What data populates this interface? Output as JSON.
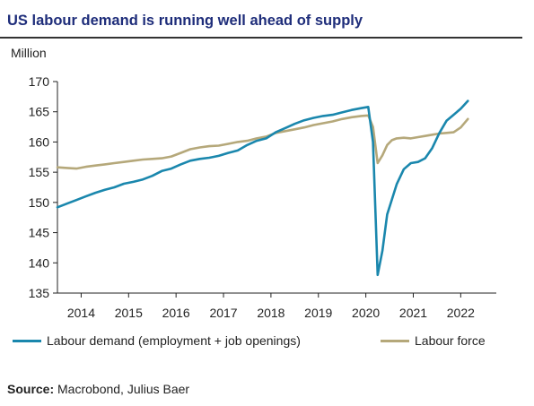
{
  "chart_data": {
    "type": "line",
    "title": "US labour demand is running well ahead of supply",
    "ylabel": "Million",
    "xlabel": "",
    "ylim": [
      135,
      170
    ],
    "yticks": [
      135,
      140,
      145,
      150,
      155,
      160,
      165,
      170
    ],
    "xlim": [
      2013.5,
      2022.75
    ],
    "xticks": [
      {
        "label": "2014",
        "value": 2014.0
      },
      {
        "label": "2015",
        "value": 2015.0
      },
      {
        "label": "2016",
        "value": 2016.0
      },
      {
        "label": "2017",
        "value": 2017.0
      },
      {
        "label": "2018",
        "value": 2018.0
      },
      {
        "label": "2019",
        "value": 2019.0
      },
      {
        "label": "2020",
        "value": 2020.0
      },
      {
        "label": "2021",
        "value": 2021.0
      },
      {
        "label": "2022",
        "value": 2022.0
      }
    ],
    "grid": false,
    "legend_position": "bottom",
    "series": [
      {
        "name": "Labour demand (employment + job openings)",
        "color": "#1a87ad",
        "points": [
          [
            2013.5,
            149.2
          ],
          [
            2013.7,
            149.8
          ],
          [
            2013.9,
            150.4
          ],
          [
            2014.1,
            151.0
          ],
          [
            2014.3,
            151.6
          ],
          [
            2014.5,
            152.1
          ],
          [
            2014.7,
            152.5
          ],
          [
            2014.9,
            153.1
          ],
          [
            2015.1,
            153.4
          ],
          [
            2015.3,
            153.8
          ],
          [
            2015.5,
            154.4
          ],
          [
            2015.7,
            155.2
          ],
          [
            2015.9,
            155.6
          ],
          [
            2016.1,
            156.3
          ],
          [
            2016.3,
            156.9
          ],
          [
            2016.5,
            157.2
          ],
          [
            2016.7,
            157.4
          ],
          [
            2016.9,
            157.7
          ],
          [
            2017.1,
            158.2
          ],
          [
            2017.3,
            158.6
          ],
          [
            2017.5,
            159.5
          ],
          [
            2017.7,
            160.2
          ],
          [
            2017.9,
            160.6
          ],
          [
            2018.1,
            161.6
          ],
          [
            2018.3,
            162.3
          ],
          [
            2018.5,
            163.0
          ],
          [
            2018.7,
            163.6
          ],
          [
            2018.9,
            164.0
          ],
          [
            2019.1,
            164.3
          ],
          [
            2019.3,
            164.5
          ],
          [
            2019.5,
            164.9
          ],
          [
            2019.7,
            165.3
          ],
          [
            2019.9,
            165.6
          ],
          [
            2020.05,
            165.8
          ],
          [
            2020.15,
            160.0
          ],
          [
            2020.25,
            138.0
          ],
          [
            2020.35,
            142.0
          ],
          [
            2020.45,
            148.0
          ],
          [
            2020.55,
            150.5
          ],
          [
            2020.65,
            153.0
          ],
          [
            2020.8,
            155.5
          ],
          [
            2020.95,
            156.5
          ],
          [
            2021.1,
            156.7
          ],
          [
            2021.25,
            157.3
          ],
          [
            2021.4,
            159.0
          ],
          [
            2021.55,
            161.5
          ],
          [
            2021.7,
            163.5
          ],
          [
            2021.85,
            164.5
          ],
          [
            2022.0,
            165.5
          ],
          [
            2022.15,
            166.8
          ]
        ]
      },
      {
        "name": "Labour force",
        "color": "#b5a87a",
        "points": [
          [
            2013.5,
            155.8
          ],
          [
            2013.7,
            155.7
          ],
          [
            2013.9,
            155.6
          ],
          [
            2014.1,
            155.9
          ],
          [
            2014.3,
            156.1
          ],
          [
            2014.5,
            156.3
          ],
          [
            2014.7,
            156.5
          ],
          [
            2014.9,
            156.7
          ],
          [
            2015.1,
            156.9
          ],
          [
            2015.3,
            157.1
          ],
          [
            2015.5,
            157.2
          ],
          [
            2015.7,
            157.3
          ],
          [
            2015.9,
            157.6
          ],
          [
            2016.1,
            158.2
          ],
          [
            2016.3,
            158.8
          ],
          [
            2016.5,
            159.1
          ],
          [
            2016.7,
            159.3
          ],
          [
            2016.9,
            159.4
          ],
          [
            2017.1,
            159.7
          ],
          [
            2017.3,
            160.0
          ],
          [
            2017.5,
            160.2
          ],
          [
            2017.7,
            160.6
          ],
          [
            2017.9,
            160.9
          ],
          [
            2018.1,
            161.5
          ],
          [
            2018.3,
            161.8
          ],
          [
            2018.5,
            162.1
          ],
          [
            2018.7,
            162.4
          ],
          [
            2018.9,
            162.8
          ],
          [
            2019.1,
            163.1
          ],
          [
            2019.3,
            163.4
          ],
          [
            2019.5,
            163.8
          ],
          [
            2019.7,
            164.1
          ],
          [
            2019.9,
            164.3
          ],
          [
            2020.05,
            164.4
          ],
          [
            2020.15,
            162.5
          ],
          [
            2020.25,
            156.5
          ],
          [
            2020.35,
            157.8
          ],
          [
            2020.45,
            159.5
          ],
          [
            2020.55,
            160.3
          ],
          [
            2020.65,
            160.6
          ],
          [
            2020.8,
            160.7
          ],
          [
            2020.95,
            160.6
          ],
          [
            2021.1,
            160.8
          ],
          [
            2021.25,
            161.0
          ],
          [
            2021.4,
            161.2
          ],
          [
            2021.55,
            161.4
          ],
          [
            2021.7,
            161.5
          ],
          [
            2021.85,
            161.6
          ],
          [
            2022.0,
            162.4
          ],
          [
            2022.15,
            163.8
          ]
        ]
      }
    ]
  },
  "source": {
    "label": "Source:",
    "text": "Macrobond, Julius Baer"
  }
}
